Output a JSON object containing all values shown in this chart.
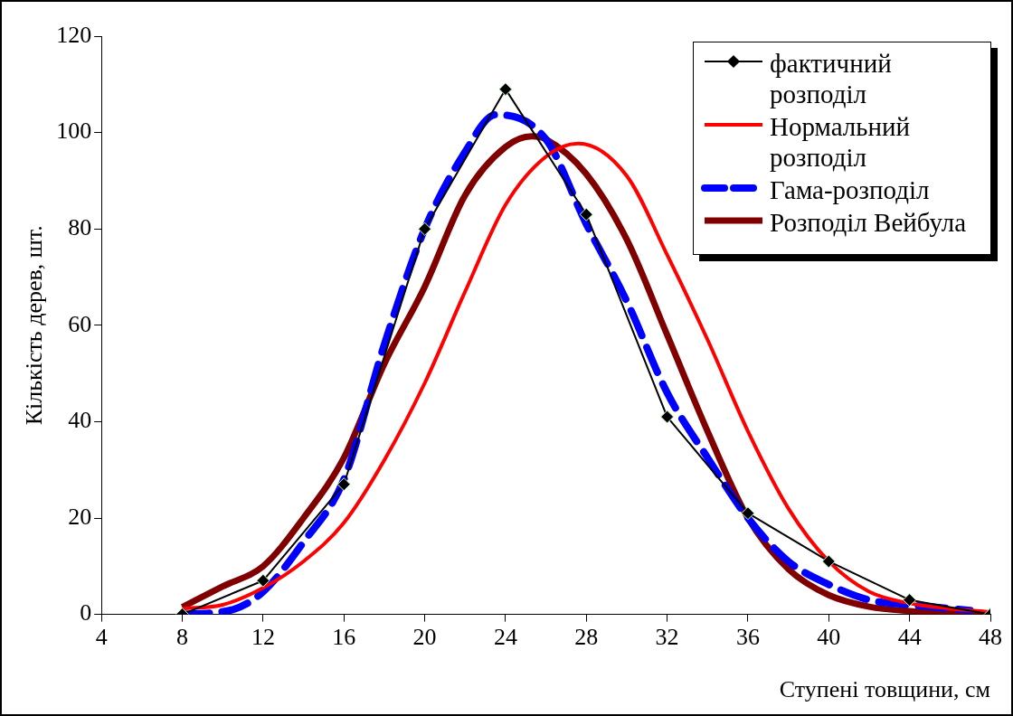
{
  "chart_data": {
    "type": "line",
    "xlabel": "Ступені товщини, см",
    "ylabel": "Кількість дерев, шт.",
    "xlim": [
      4,
      48
    ],
    "xticks": [
      4,
      8,
      12,
      16,
      20,
      24,
      28,
      32,
      36,
      40,
      44,
      48
    ],
    "ylim": [
      0,
      120
    ],
    "yticks": [
      0,
      20,
      40,
      60,
      80,
      100,
      120
    ],
    "grid": false,
    "legend": "top right",
    "series": [
      {
        "name": "фактичний розподіл",
        "color": "#000000",
        "marker": "diamond",
        "line_style": "solid",
        "x": [
          8,
          12,
          16,
          20,
          24,
          28,
          32,
          36,
          40,
          44,
          48
        ],
        "values": [
          0,
          7,
          27,
          80,
          109,
          83,
          41,
          21,
          11,
          3,
          0
        ]
      },
      {
        "name": "Нормальний розподіл",
        "color": "#ff0000",
        "marker": "none",
        "line_style": "solid",
        "x": [
          8,
          10,
          12,
          14,
          16,
          18,
          20,
          22,
          24,
          26,
          27.6,
          30,
          32,
          34,
          36,
          38,
          40,
          42,
          44,
          46,
          48
        ],
        "values": [
          1.2,
          2,
          5.5,
          11,
          19,
          32,
          48,
          67,
          85,
          95,
          97.7,
          91,
          74.6,
          57,
          38,
          22,
          11,
          4.7,
          2.3,
          1.2,
          0.5
        ]
      },
      {
        "name": "Гама-розподіл",
        "color": "#0000ff",
        "marker": "none",
        "line_style": "dashed",
        "x": [
          8,
          10.5,
          12,
          14,
          16,
          18,
          20,
          22,
          23.5,
          26,
          28,
          30,
          32,
          34,
          36,
          38,
          40,
          42,
          44,
          46,
          47
        ],
        "values": [
          0,
          1,
          4.7,
          15,
          28,
          56,
          80,
          96,
          103.7,
          98.6,
          81,
          65,
          46,
          32.5,
          20,
          11,
          6.2,
          3,
          2,
          1.2,
          0.8
        ]
      },
      {
        "name": "Розподіл Вейбула",
        "color": "#800000",
        "marker": "none",
        "line_style": "solid",
        "x": [
          8,
          10,
          12,
          14,
          16,
          18,
          20,
          22,
          24,
          25.3,
          26,
          28,
          30,
          32,
          34,
          36,
          38,
          40,
          42,
          44,
          46,
          48
        ],
        "values": [
          1.5,
          5.8,
          10,
          20,
          32.5,
          52,
          68,
          87,
          97,
          99.2,
          98.6,
          91.4,
          77.8,
          58,
          38,
          20,
          9.4,
          4,
          1.6,
          0.7,
          0.3,
          0.2
        ]
      }
    ]
  }
}
